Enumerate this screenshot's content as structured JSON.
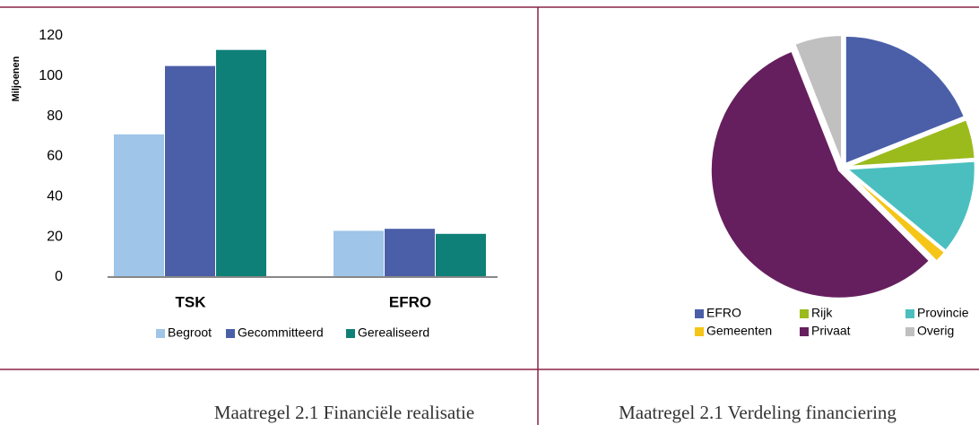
{
  "chart_data": [
    {
      "type": "bar",
      "y_label": "Miljoenen",
      "caption": "Maatregel 2.1 Financiële realisatie",
      "categories": [
        "TSK",
        "EFRO"
      ],
      "series": [
        {
          "name": "Begroot",
          "color": "#9fc5e8",
          "values": [
            71,
            23
          ]
        },
        {
          "name": "Gecommitteerd",
          "color": "#4a5fa8",
          "values": [
            105,
            24
          ]
        },
        {
          "name": "Gerealiseerd",
          "color": "#0e8078",
          "values": [
            113,
            21.5
          ]
        }
      ],
      "ylim": [
        0,
        120
      ],
      "yticks": [
        0,
        20,
        40,
        60,
        80,
        100,
        120
      ],
      "grid": false,
      "legend": "bottom"
    },
    {
      "type": "pie",
      "caption": "Maatregel 2.1 Verdeling financiering",
      "categories": [
        "EFRO",
        "Rijk",
        "Provincie",
        "Gemeenten",
        "Privaat",
        "Overig"
      ],
      "values": [
        19,
        5,
        12,
        1.5,
        56.5,
        6
      ],
      "colors": [
        "#4a5fa8",
        "#9bbb1c",
        "#4bbfbf",
        "#f5c518",
        "#661f5e",
        "#c0c0c0"
      ],
      "legend": "bottom"
    }
  ]
}
